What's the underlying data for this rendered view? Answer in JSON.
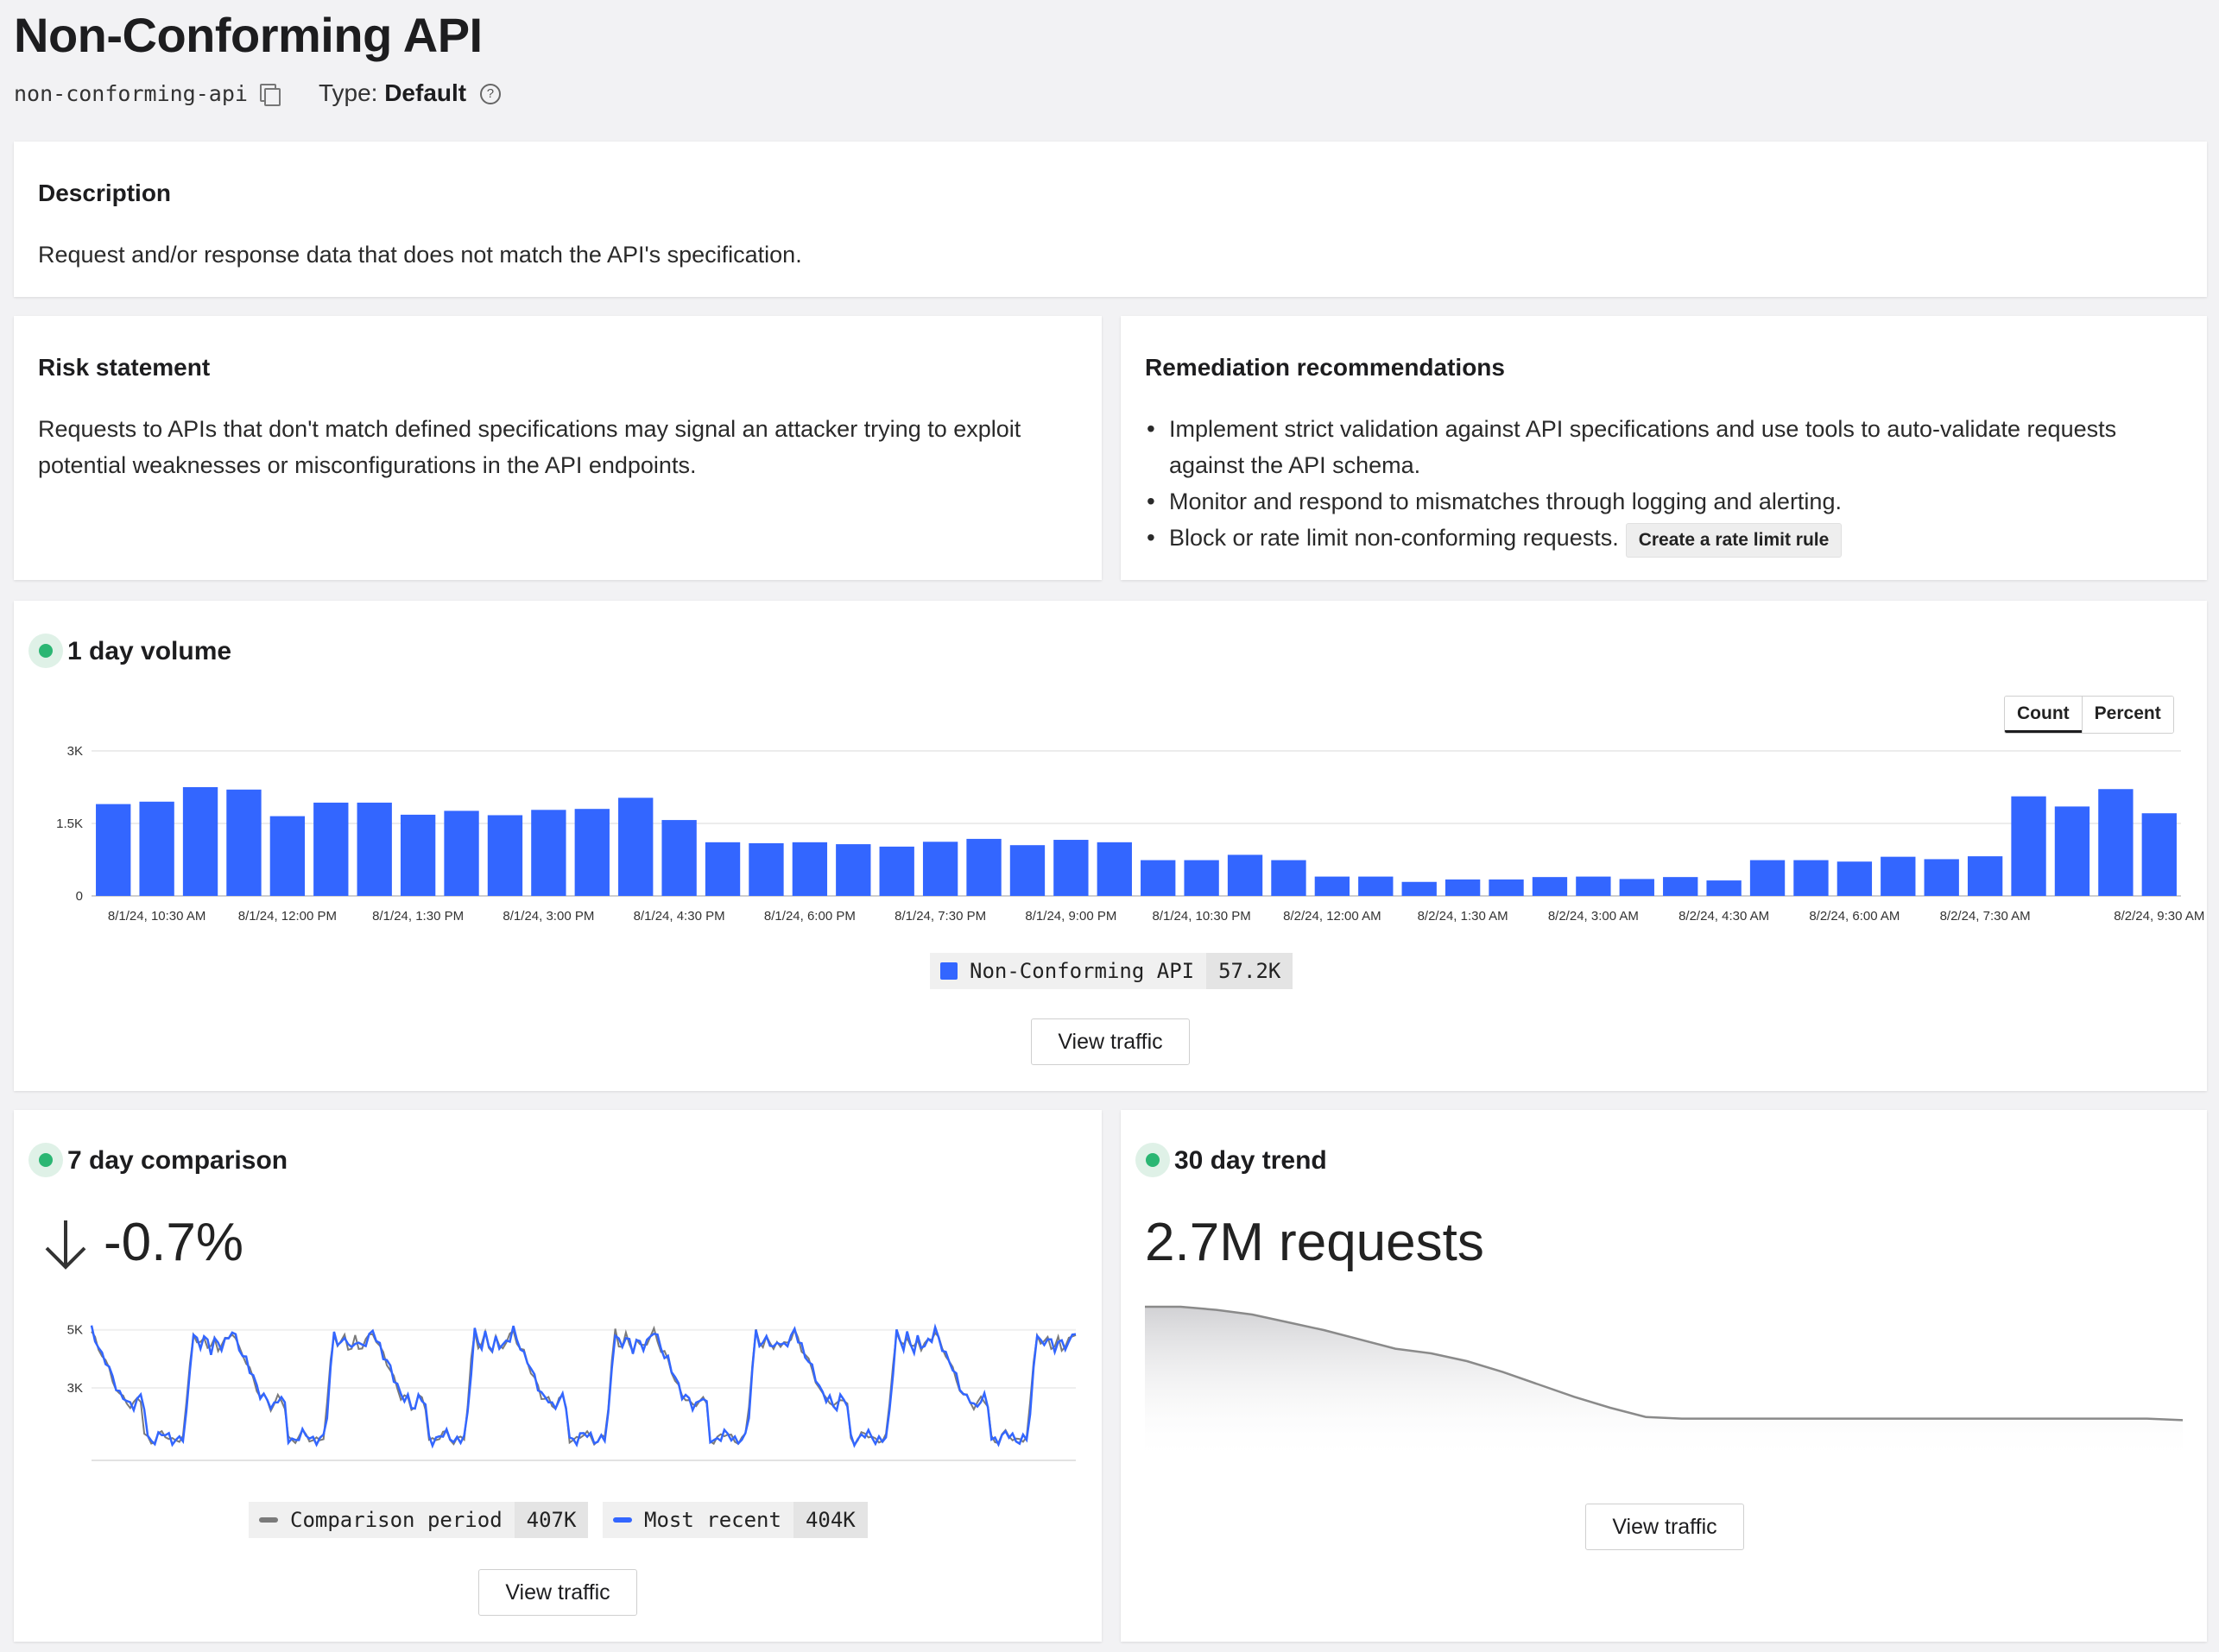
{
  "header": {
    "title": "Non-Conforming API",
    "slug": "non-conforming-api",
    "type_label": "Type:",
    "type_value": "Default"
  },
  "description": {
    "title": "Description",
    "text": "Request and/or response data that does not match the API's specification."
  },
  "risk": {
    "title": "Risk statement",
    "text": "Requests to APIs that don't match defined specifications may signal an attacker trying to exploit potential weaknesses or misconfigurations in the API endpoints."
  },
  "remediation": {
    "title": "Remediation recommendations",
    "items": [
      "Implement strict validation against API specifications and use tools to auto-validate requests against the API schema.",
      "Monitor and respond to mismatches through logging and alerting.",
      "Block or rate limit non-conforming requests."
    ],
    "rate_limit_button": "Create a rate limit rule"
  },
  "volume": {
    "title": "1 day volume",
    "toggle": [
      "Count",
      "Percent"
    ],
    "active_toggle": "Count",
    "legend_name": "Non-Conforming API",
    "legend_value": "57.2K",
    "view_traffic": "View traffic"
  },
  "comparison": {
    "title": "7 day comparison",
    "delta": "-0.7%",
    "legend": [
      {
        "name": "Comparison period",
        "value": "407K",
        "color": "#7a7a7a"
      },
      {
        "name": "Most recent",
        "value": "404K",
        "color": "#3366ff"
      }
    ],
    "view_traffic": "View traffic",
    "y_ticks": [
      "5K",
      "3K"
    ]
  },
  "trend": {
    "title": "30 day trend",
    "metric": "2.7M requests",
    "view_traffic": "View traffic"
  },
  "chart_data": [
    {
      "type": "bar",
      "title": "1 day volume",
      "ylim": [
        0,
        3000
      ],
      "y_ticks": [
        {
          "label": "3K",
          "value": 3000
        },
        {
          "label": "1.5K",
          "value": 1500
        },
        {
          "label": "0",
          "value": 0
        }
      ],
      "x_tick_labels": [
        {
          "label": "8/1/24, 10:30 AM",
          "index": 1
        },
        {
          "label": "8/1/24, 12:00 PM",
          "index": 4
        },
        {
          "label": "8/1/24, 1:30 PM",
          "index": 7
        },
        {
          "label": "8/1/24, 3:00 PM",
          "index": 10
        },
        {
          "label": "8/1/24, 4:30 PM",
          "index": 13
        },
        {
          "label": "8/1/24, 6:00 PM",
          "index": 16
        },
        {
          "label": "8/1/24, 7:30 PM",
          "index": 19
        },
        {
          "label": "8/1/24, 9:00 PM",
          "index": 22
        },
        {
          "label": "8/1/24, 10:30 PM",
          "index": 25
        },
        {
          "label": "8/2/24, 12:00 AM",
          "index": 28
        },
        {
          "label": "8/2/24, 1:30 AM",
          "index": 31
        },
        {
          "label": "8/2/24, 3:00 AM",
          "index": 34
        },
        {
          "label": "8/2/24, 4:30 AM",
          "index": 37
        },
        {
          "label": "8/2/24, 6:00 AM",
          "index": 40
        },
        {
          "label": "8/2/24, 7:30 AM",
          "index": 43
        },
        {
          "label": "8/2/24, 9:30 AM",
          "index": 47
        }
      ],
      "series": [
        {
          "name": "Non-Conforming API",
          "color": "#3366ff",
          "values": [
            1900,
            1950,
            2250,
            2200,
            1650,
            1930,
            1930,
            1680,
            1760,
            1670,
            1780,
            1800,
            2030,
            1570,
            1110,
            1090,
            1110,
            1070,
            1020,
            1120,
            1180,
            1050,
            1160,
            1110,
            740,
            740,
            850,
            740,
            400,
            400,
            290,
            340,
            340,
            390,
            400,
            350,
            390,
            320,
            740,
            740,
            710,
            810,
            760,
            820,
            2060,
            1850,
            2210,
            1710
          ]
        }
      ]
    },
    {
      "type": "line",
      "title": "7 day comparison",
      "y_ticks": [
        {
          "label": "5K",
          "value": 5000
        },
        {
          "label": "3K",
          "value": 3000
        }
      ],
      "ylim": [
        500,
        5200
      ],
      "series": [
        {
          "name": "Comparison period",
          "color": "#7a7a7a"
        },
        {
          "name": "Most recent",
          "color": "#3366ff"
        }
      ]
    },
    {
      "type": "area",
      "title": "30 day trend",
      "values": [
        1.0,
        1.0,
        0.98,
        0.95,
        0.9,
        0.85,
        0.79,
        0.73,
        0.7,
        0.65,
        0.58,
        0.5,
        0.42,
        0.35,
        0.29,
        0.28,
        0.28,
        0.28,
        0.28,
        0.28,
        0.28,
        0.28,
        0.28,
        0.28,
        0.28,
        0.28,
        0.28,
        0.28,
        0.28,
        0.27
      ]
    }
  ]
}
